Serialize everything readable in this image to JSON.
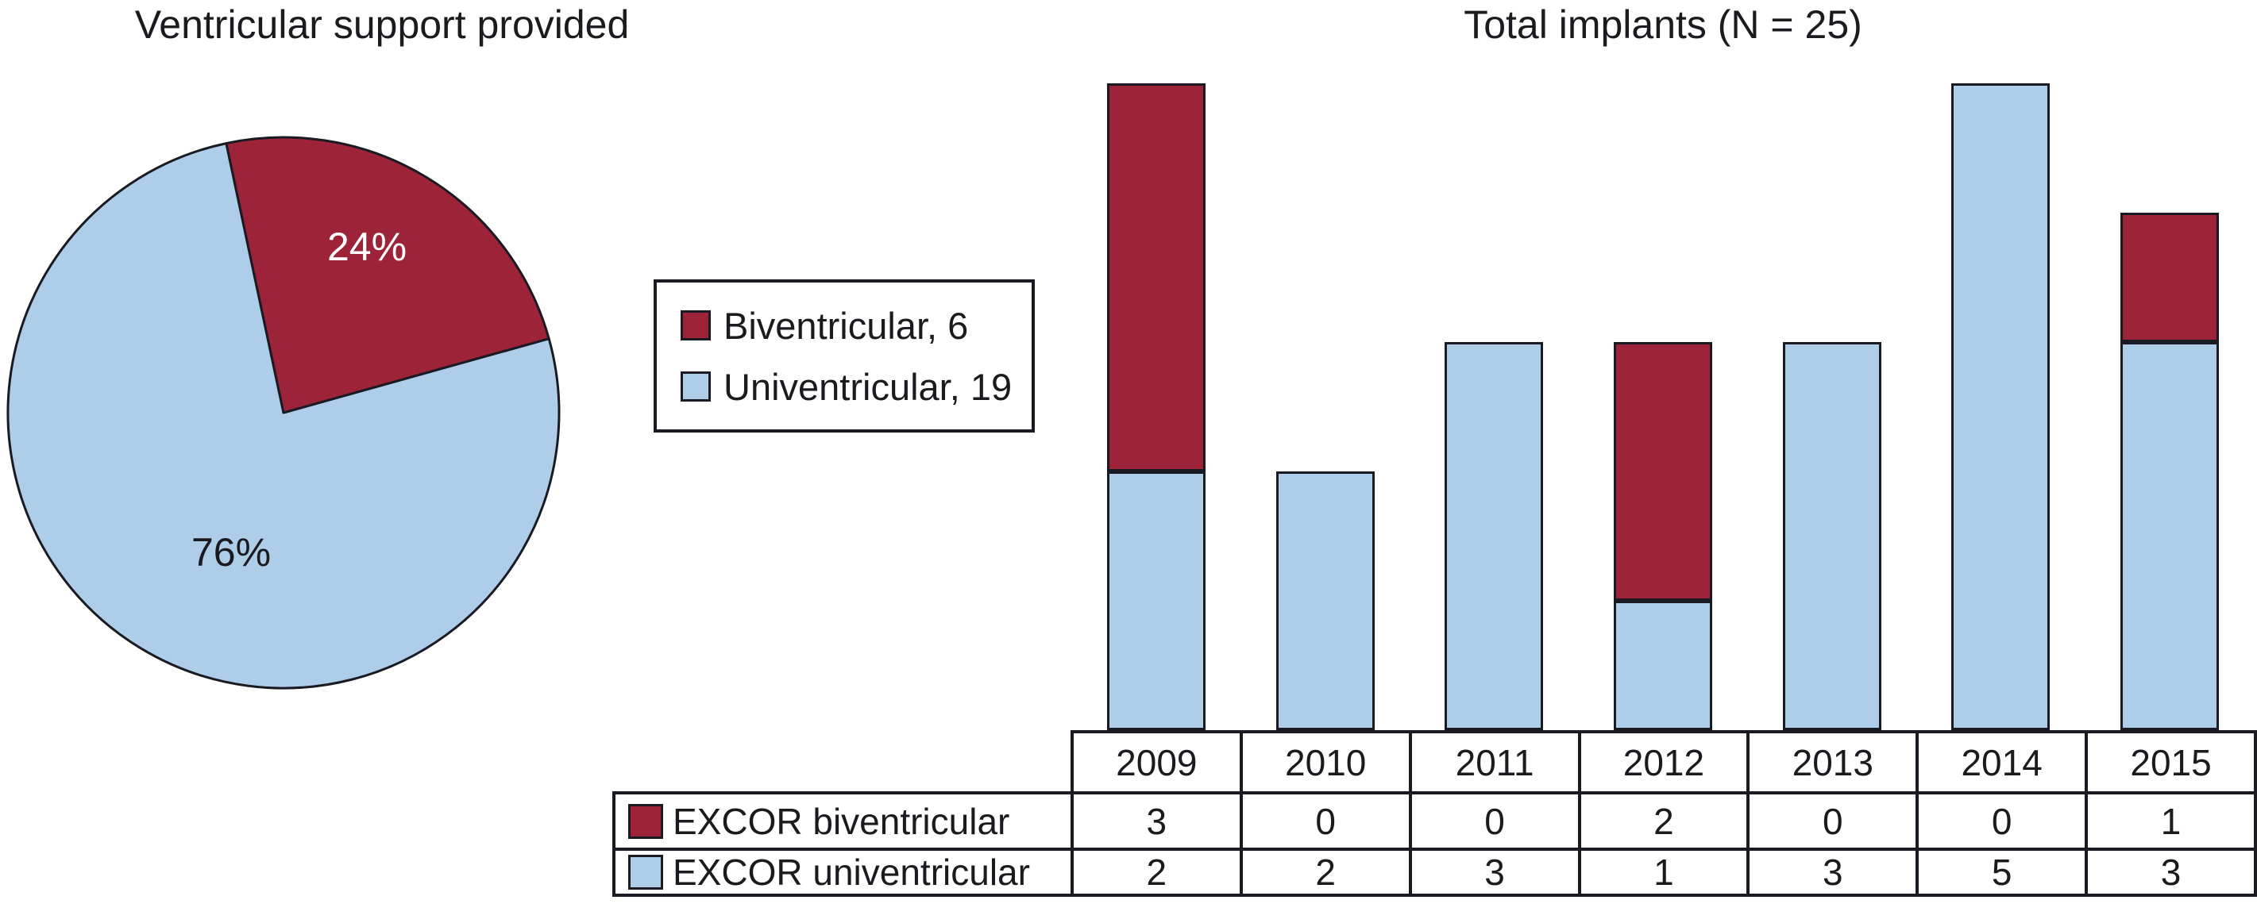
{
  "figure": {
    "background": "#FFFFFF",
    "outline_color": "#1A1A23",
    "text_color": "#1A1A1F"
  },
  "chart_data": [
    {
      "type": "pie",
      "title": "Ventricular support provided",
      "labels": [
        "Biventricular",
        "Univentricular"
      ],
      "values": [
        24,
        76
      ],
      "unit": "percent",
      "counts": [
        6,
        19
      ],
      "total_n": 25,
      "colors": [
        "#9D2338",
        "#AECDE9"
      ],
      "slice_labels": [
        "24%",
        "76%"
      ],
      "slice_label_colors": [
        "#FFFFFF",
        "#1A1A1F"
      ],
      "legend": [
        "Biventricular, 6",
        "Univentricular, 19"
      ],
      "legend_position": "right-of-pie",
      "start_angle_ccw_from_top_deg": 12,
      "direction": "clockwise"
    },
    {
      "type": "bar",
      "stacked": true,
      "title": "Total implants (N = 25)",
      "categories": [
        "2009",
        "2010",
        "2011",
        "2012",
        "2013",
        "2014",
        "2015"
      ],
      "series": [
        {
          "name": "EXCOR biventricular",
          "color": "#9D2338",
          "values": [
            3,
            0,
            0,
            2,
            0,
            0,
            1
          ]
        },
        {
          "name": "EXCOR univentricular",
          "color": "#AECDE9",
          "values": [
            2,
            2,
            3,
            1,
            3,
            5,
            3
          ]
        }
      ],
      "ylim": [
        0,
        5
      ],
      "gridlines": false,
      "y_axis_shown": false,
      "data_table_shown": true
    }
  ]
}
